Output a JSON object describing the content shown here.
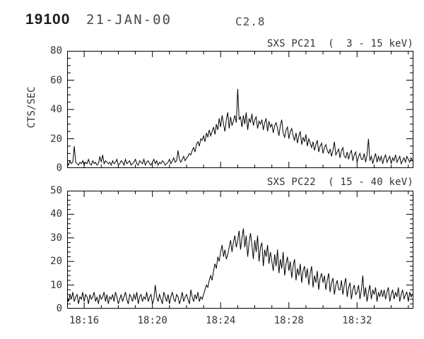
{
  "header": {
    "flare_id": "19100",
    "date": "21-JAN-00",
    "goes_class": "C2.8"
  },
  "chart_data": [
    {
      "type": "line",
      "series_name": "SXS PC21",
      "title": "SXS PC21  (  3 - 15 keV)",
      "ylabel": "CTS/SEC",
      "xlabel": "",
      "units": "CTS/SEC",
      "x_is_time": true,
      "xlim_minutes_after_1800": [
        15.0,
        35.3
      ],
      "ylim": [
        0,
        80
      ],
      "yticks": [
        0,
        20,
        40,
        60,
        80
      ],
      "ytick_minor_step": 5,
      "xticks_minutes": [
        16,
        20,
        24,
        28,
        32
      ],
      "xtick_labels": [],
      "xtick_minor_step": 1,
      "grid": false,
      "legend": "none",
      "t0_minutes": 15.0,
      "dt_minutes": 0.0833333,
      "values": [
        4,
        2,
        5,
        3,
        4,
        15,
        4,
        3,
        2,
        4,
        3,
        5,
        2,
        4,
        3,
        6,
        3,
        2,
        5,
        3,
        4,
        2,
        3,
        8,
        4,
        9,
        3,
        5,
        4,
        3,
        4,
        2,
        5,
        3,
        4,
        6,
        2,
        3,
        5,
        4,
        2,
        6,
        3,
        4,
        5,
        2,
        3,
        4,
        6,
        3,
        2,
        5,
        4,
        3,
        6,
        2,
        4,
        5,
        3,
        2,
        4,
        6,
        3,
        5,
        2,
        4,
        3,
        5,
        4,
        2,
        3,
        4,
        6,
        3,
        5,
        7,
        4,
        5,
        12,
        6,
        4,
        6,
        8,
        5,
        7,
        8,
        10,
        9,
        12,
        14,
        11,
        16,
        18,
        15,
        20,
        19,
        22,
        18,
        24,
        21,
        26,
        22,
        25,
        28,
        23,
        30,
        26,
        34,
        28,
        36,
        30,
        25,
        33,
        38,
        27,
        35,
        29,
        32,
        36,
        31,
        54,
        33,
        35,
        28,
        36,
        30,
        38,
        26,
        34,
        31,
        37,
        29,
        33,
        35,
        27,
        32,
        30,
        33,
        26,
        31,
        34,
        25,
        32,
        28,
        30,
        24,
        29,
        31,
        27,
        22,
        29,
        33,
        24,
        21,
        26,
        28,
        20,
        25,
        27,
        22,
        19,
        24,
        17,
        22,
        25,
        16,
        21,
        18,
        23,
        15,
        20,
        17,
        14,
        18,
        12,
        16,
        19,
        11,
        15,
        17,
        10,
        14,
        16,
        12,
        10,
        13,
        8,
        12,
        18,
        9,
        11,
        13,
        7,
        12,
        14,
        8,
        7,
        11,
        6,
        10,
        12,
        5,
        9,
        11,
        4,
        8,
        10,
        6,
        6,
        10,
        4,
        9,
        20,
        5,
        8,
        3,
        7,
        10,
        4,
        8,
        5,
        8,
        3,
        7,
        9,
        4,
        6,
        8,
        3,
        7,
        5,
        9,
        4,
        6,
        8,
        3,
        5,
        7,
        4,
        8,
        6,
        4,
        7,
        5
      ]
    },
    {
      "type": "line",
      "series_name": "SXS PC22",
      "title": "SXS PC22  ( 15 - 40 keV)",
      "ylabel": "",
      "xlabel": "",
      "units": "CTS/SEC",
      "x_is_time": true,
      "xlim_minutes_after_1800": [
        15.0,
        35.3
      ],
      "ylim": [
        0,
        50
      ],
      "yticks": [
        0,
        10,
        20,
        30,
        40,
        50
      ],
      "ytick_minor_step": 2,
      "xticks_minutes": [
        16,
        20,
        24,
        28,
        32
      ],
      "xtick_labels": [
        "18:16",
        "18:20",
        "18:24",
        "18:28",
        "18:32"
      ],
      "xtick_minor_step": 1,
      "grid": false,
      "legend": "none",
      "t0_minutes": 15.0,
      "dt_minutes": 0.0833333,
      "values": [
        5,
        3,
        6,
        4,
        7,
        3,
        5,
        6,
        2,
        5,
        4,
        7,
        3,
        6,
        5,
        2,
        6,
        4,
        5,
        7,
        3,
        5,
        2,
        6,
        4,
        5,
        7,
        3,
        6,
        2,
        5,
        4,
        6,
        3,
        7,
        5,
        2,
        4,
        6,
        3,
        5,
        7,
        4,
        2,
        6,
        5,
        3,
        6,
        4,
        7,
        2,
        5,
        6,
        3,
        5,
        4,
        7,
        3,
        5,
        6,
        2,
        4,
        10,
        5,
        3,
        6,
        4,
        2,
        7,
        5,
        3,
        6,
        2,
        5,
        7,
        4,
        3,
        6,
        5,
        2,
        4,
        7,
        3,
        5,
        6,
        4,
        2,
        8,
        5,
        3,
        6,
        4,
        7,
        3,
        5,
        4,
        6,
        8,
        10,
        9,
        12,
        14,
        12,
        16,
        19,
        17,
        22,
        20,
        24,
        27,
        22,
        25,
        21,
        23,
        26,
        29,
        24,
        28,
        31,
        26,
        29,
        33,
        25,
        30,
        34,
        26,
        31,
        22,
        28,
        32,
        27,
        21,
        29,
        24,
        31,
        20,
        26,
        28,
        18,
        25,
        22,
        27,
        19,
        24,
        20,
        16,
        23,
        18,
        25,
        15,
        21,
        17,
        24,
        14,
        19,
        22,
        16,
        20,
        13,
        18,
        21,
        12,
        17,
        14,
        19,
        11,
        16,
        18,
        13,
        17,
        10,
        15,
        18,
        9,
        14,
        11,
        16,
        8,
        13,
        15,
        11,
        14,
        8,
        12,
        15,
        7,
        11,
        13,
        6,
        10,
        12,
        8,
        8,
        12,
        6,
        10,
        13,
        5,
        9,
        11,
        4,
        8,
        10,
        6,
        7,
        10,
        4,
        8,
        14,
        5,
        9,
        3,
        7,
        10,
        4,
        8,
        6,
        9,
        3,
        7,
        5,
        8,
        5,
        8,
        4,
        7,
        9,
        3,
        6,
        8,
        4,
        7,
        5,
        9,
        3,
        6,
        8,
        4,
        6,
        7,
        3,
        7,
        5,
        6
      ]
    }
  ]
}
